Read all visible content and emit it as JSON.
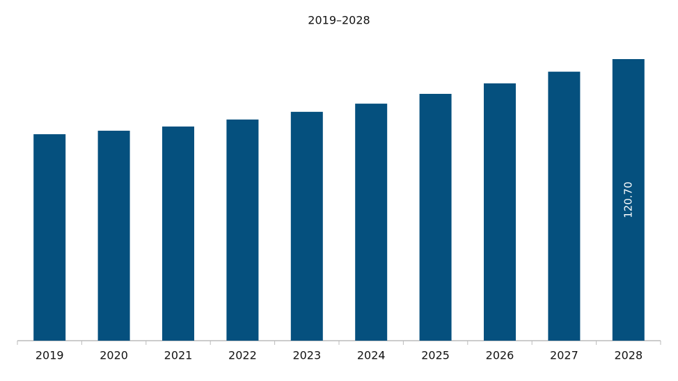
{
  "chart_data": {
    "type": "bar",
    "title": "2019–2028",
    "categories": [
      "2019",
      "2020",
      "2021",
      "2022",
      "2023",
      "2024",
      "2025",
      "2026",
      "2027",
      "2028"
    ],
    "values": [
      88.5,
      90.0,
      91.8,
      94.8,
      98.1,
      101.6,
      105.8,
      110.3,
      115.3,
      120.7
    ],
    "value_labels": [
      null,
      null,
      null,
      null,
      null,
      null,
      null,
      null,
      null,
      "120.70"
    ],
    "color": "#05507e"
  }
}
